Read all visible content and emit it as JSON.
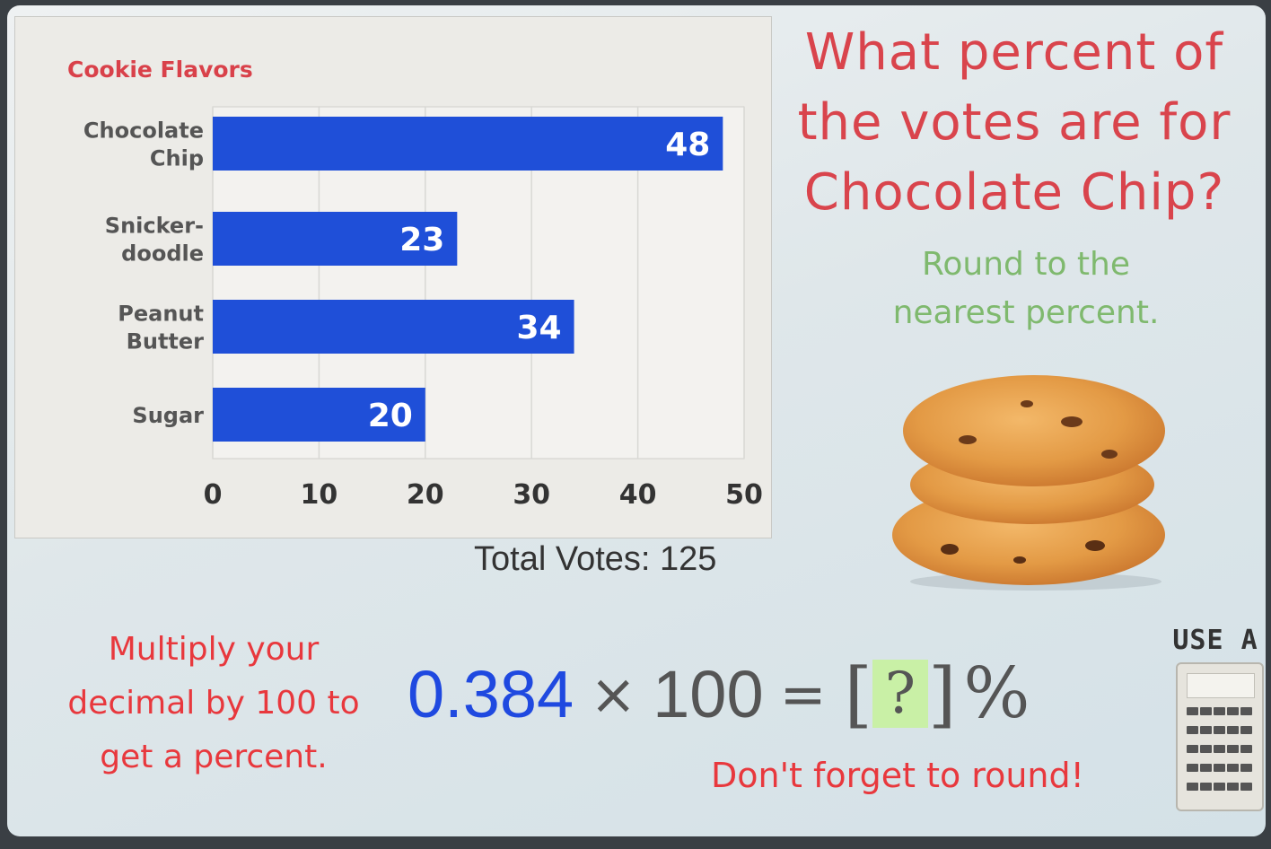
{
  "chart_data": {
    "type": "bar",
    "orientation": "horizontal",
    "title": "Cookie Flavors",
    "categories": [
      [
        "Chocolate",
        "Chip"
      ],
      [
        "Snicker-",
        "doodle"
      ],
      [
        "Peanut",
        "Butter"
      ],
      [
        "Sugar"
      ]
    ],
    "values": [
      48,
      23,
      34,
      20
    ],
    "xlim": [
      0,
      50
    ],
    "xticks": [
      "0",
      "10",
      "20",
      "30",
      "40",
      "50"
    ],
    "bar_color": "#1f4fd8",
    "data_label_color": "#ffffff",
    "grid": true,
    "legend": "none"
  },
  "total_votes": "Total Votes: 125",
  "question": [
    "What percent of",
    "the votes are for",
    "Chocolate Chip?"
  ],
  "hint": [
    "Round to the",
    "nearest percent."
  ],
  "multiply_hint": [
    "Multiply your",
    "decimal by 100 to",
    "get a percent."
  ],
  "equation": {
    "decimal": "0.384",
    "times": "×",
    "multiplier": "100",
    "equals": "=",
    "open_bracket": "[",
    "placeholder": "?",
    "close_bracket": "]",
    "percent": "%"
  },
  "round_reminder": "Don't forget to round!",
  "calculator_tip": "USE A",
  "icons": {
    "cookie": "cookie-stack-icon",
    "calculator": "calculator-icon"
  },
  "colors": {
    "accent_red": "#d9444c",
    "hint_green": "#7fb96e",
    "decimal_blue": "#1f49e0",
    "answer_box": "#c9f0a6"
  }
}
